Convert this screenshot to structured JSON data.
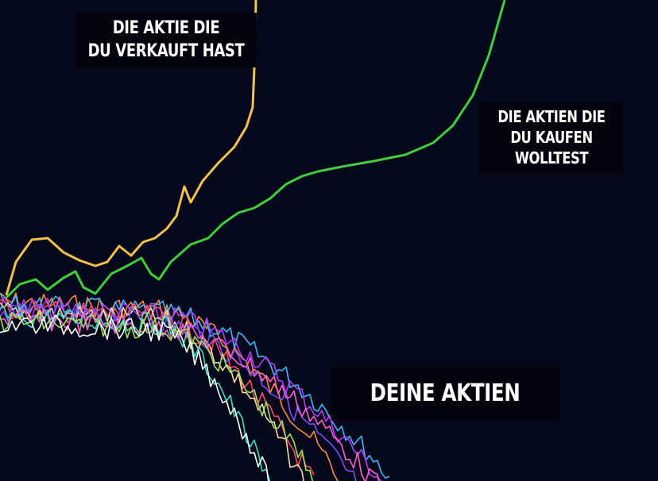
{
  "labels": {
    "sold_stock": [
      "DIE AKTIE DIE",
      "DU VERKAUFT HAST"
    ],
    "wanted_stocks": [
      "DIE AKTIEN DIE",
      "DU KAUFEN",
      "WOLLTEST"
    ],
    "your_stocks": "DEINE AKTIEN"
  },
  "colors": {
    "background": "#05071a",
    "sold_line": "#f2c14e",
    "wanted_line": "#3ecf3a",
    "your_lines": [
      "#ff8a3d",
      "#3fb6ff",
      "#b43cff",
      "#ff4a6a",
      "#ffd8a8",
      "#7a4dff",
      "#36e0c0",
      "#ff5fd0",
      "#9be35a",
      "#ffffff"
    ]
  }
}
